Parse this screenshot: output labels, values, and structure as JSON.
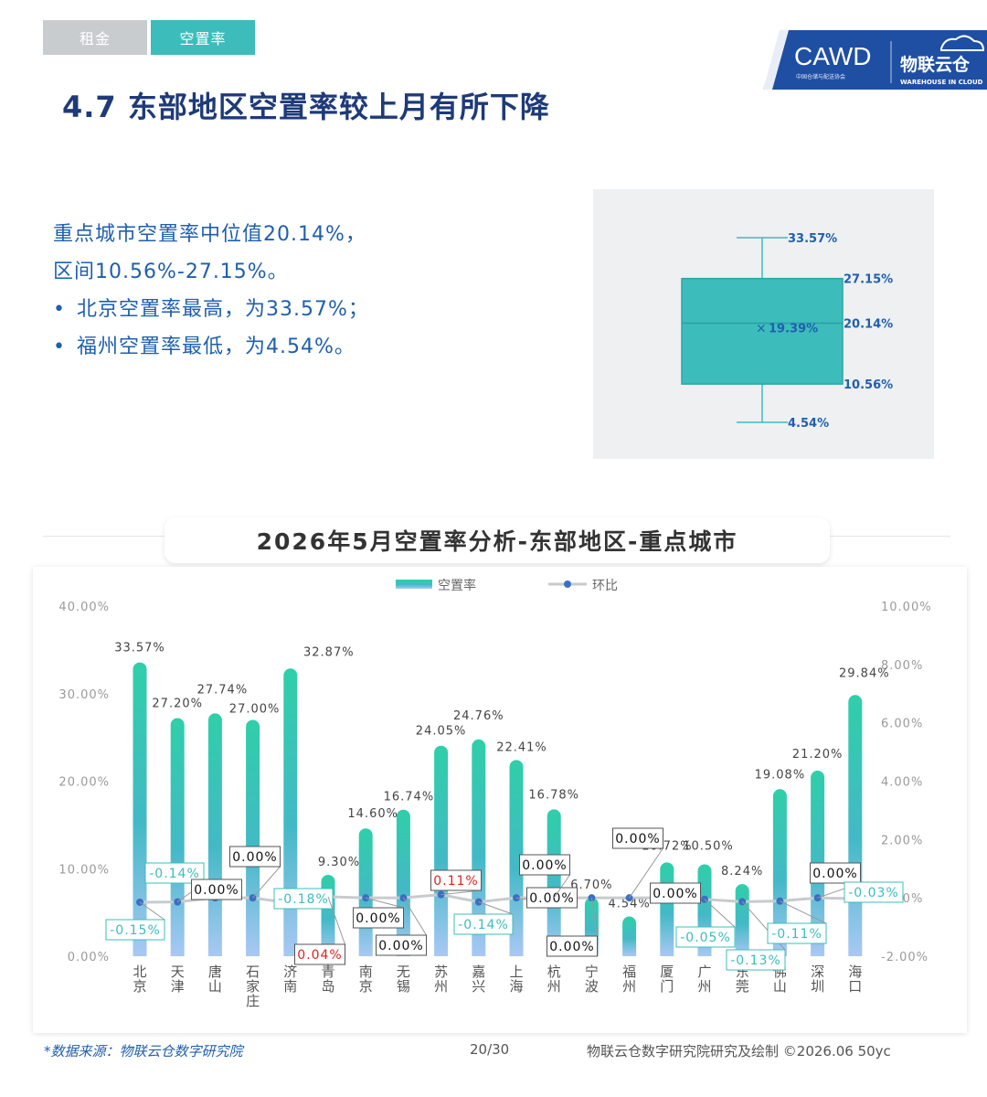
{
  "tabs": [
    {
      "label": "租金",
      "active": false
    },
    {
      "label": "空置率",
      "active": true
    }
  ],
  "logo": {
    "cawd": "CAWD",
    "cawd_sub": "中国仓储与配送协会",
    "brand": "物联云仓",
    "brand_sub": "WAREHOUSE IN CLOUD"
  },
  "title": "4.7 东部地区空置率较上月有所下降",
  "summary": {
    "line1": "重点城市空置率中位值20.14%，",
    "line2": "区间10.56%-27.15%。",
    "bullet_symbol": "•",
    "bullet1": "北京空置率最高，为33.57%；",
    "bullet2": "福州空置率最低，为4.54%。"
  },
  "boxplot": {
    "max": 33.57,
    "q3": 27.15,
    "median": 20.14,
    "q1": 10.56,
    "min": 4.54,
    "mean": 19.39,
    "labels": {
      "max": "33.57%",
      "q3": "27.15%",
      "median": "20.14%",
      "q1": "10.56%",
      "min": "4.54%",
      "mean": "19.39%"
    },
    "mean_marker": "×",
    "box_color": "#3dbcbc"
  },
  "chart_title": "2026年5月空置率分析-东部地区-重点城市",
  "chart_data": {
    "type": "bar",
    "categories": [
      "北京",
      "天津",
      "唐山",
      "石家庄",
      "济南",
      "青岛",
      "南京",
      "无锡",
      "苏州",
      "嘉兴",
      "上海",
      "杭州",
      "宁波",
      "福州",
      "厦门",
      "广州",
      "东莞",
      "佛山",
      "深圳",
      "海口"
    ],
    "series": [
      {
        "name": "空置率",
        "type": "bar",
        "axis": "left",
        "values": [
          33.57,
          27.2,
          27.74,
          27.0,
          32.87,
          9.3,
          14.6,
          16.74,
          24.05,
          24.76,
          22.41,
          16.78,
          6.7,
          4.54,
          10.72,
          10.5,
          8.24,
          19.08,
          21.2,
          29.84
        ],
        "labels": [
          "33.57%",
          "27.20%",
          "27.74%",
          "27.00%",
          "32.87%",
          "9.30%",
          "14.60%",
          "16.74%",
          "24.05%",
          "24.76%",
          "22.41%",
          "16.78%",
          "6.70%",
          "4.54%",
          "10.72%",
          "10.50%",
          "8.24%",
          "19.08%",
          "21.20%",
          "29.84%"
        ]
      },
      {
        "name": "环比",
        "type": "line",
        "axis": "right",
        "values": [
          -0.15,
          -0.14,
          0.0,
          0.0,
          -0.18,
          0.04,
          0.0,
          0.0,
          0.11,
          -0.14,
          0.0,
          0.0,
          0.0,
          0.0,
          0.0,
          -0.05,
          -0.13,
          -0.11,
          0.0,
          -0.03
        ],
        "labels": [
          "-0.15%",
          "-0.14%",
          "0.00%",
          "0.00%",
          "-0.18%",
          "0.04%",
          "0.00%",
          "0.00%",
          "0.11%",
          "-0.14%",
          "0.00%",
          "0.00%",
          "0.00%",
          "0.00%",
          "0.00%",
          "-0.05%",
          "-0.13%",
          "-0.11%",
          "0.00%",
          "-0.03%"
        ]
      }
    ],
    "y_left": {
      "ylim": [
        0,
        40
      ],
      "ticks": [
        "0.00%",
        "10.00%",
        "20.00%",
        "30.00%",
        "40.00%"
      ]
    },
    "y_right": {
      "ylim": [
        -2,
        10
      ],
      "ticks": [
        "-2.00%",
        "0.00%",
        "2.00%",
        "4.00%",
        "6.00%",
        "8.00%",
        "10.00%"
      ]
    },
    "legend_position": "top-center",
    "grid": false,
    "colors": {
      "bar_top": "#2fcfa8",
      "bar_mid": "#43b9c6",
      "bar_bottom": "#a9c8f4",
      "line": "#c8cbce",
      "point": "#3a6fc4",
      "label_pos": "#e02020",
      "label_neg": "#3dbcbc",
      "label_zero": "#111111"
    }
  },
  "footer": {
    "source": "*数据来源：物联云仓数字研究院",
    "page": "20/30",
    "credit": "物联云仓数字研究院研究及绘制   ©2026.06 50yc"
  }
}
